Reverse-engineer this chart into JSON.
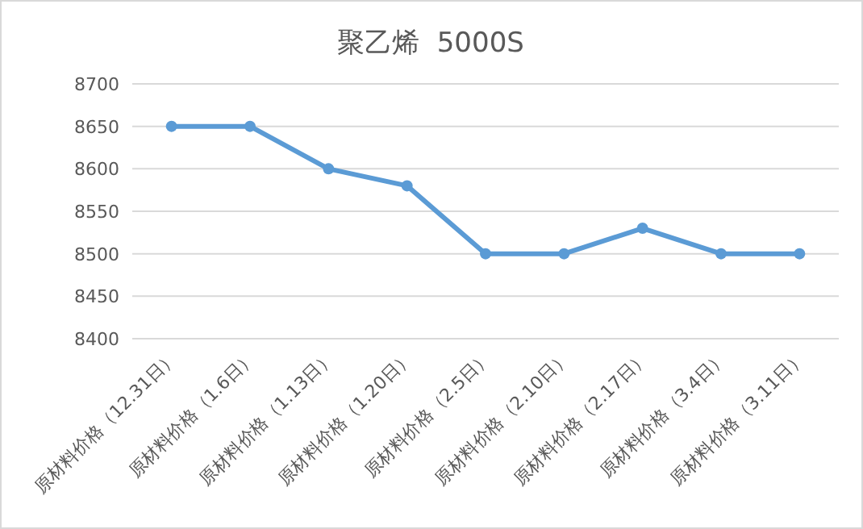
{
  "chart_data": {
    "type": "line",
    "title": "聚乙烯  5000S",
    "categories": [
      "原材料价格（12.31日）",
      "原材料价格（1.6日）",
      "原材料价格（1.13日）",
      "原材料价格（1.20日）",
      "原材料价格（2.5日）",
      "原材料价格（2.10日）",
      "原材料价格（2.17日）",
      "原材料价格（3.4日）",
      "原材料价格（3.11日）"
    ],
    "series": [
      {
        "color": "#5b9bd5",
        "values": [
          8650,
          8650,
          8600,
          8580,
          8500,
          8500,
          8530,
          8500,
          8500
        ]
      }
    ],
    "ylim": [
      8400,
      8700
    ],
    "yticks": [
      8400,
      8450,
      8500,
      8550,
      8600,
      8650,
      8700
    ],
    "grid": "y",
    "marker": "circle",
    "line_style": "solid"
  }
}
